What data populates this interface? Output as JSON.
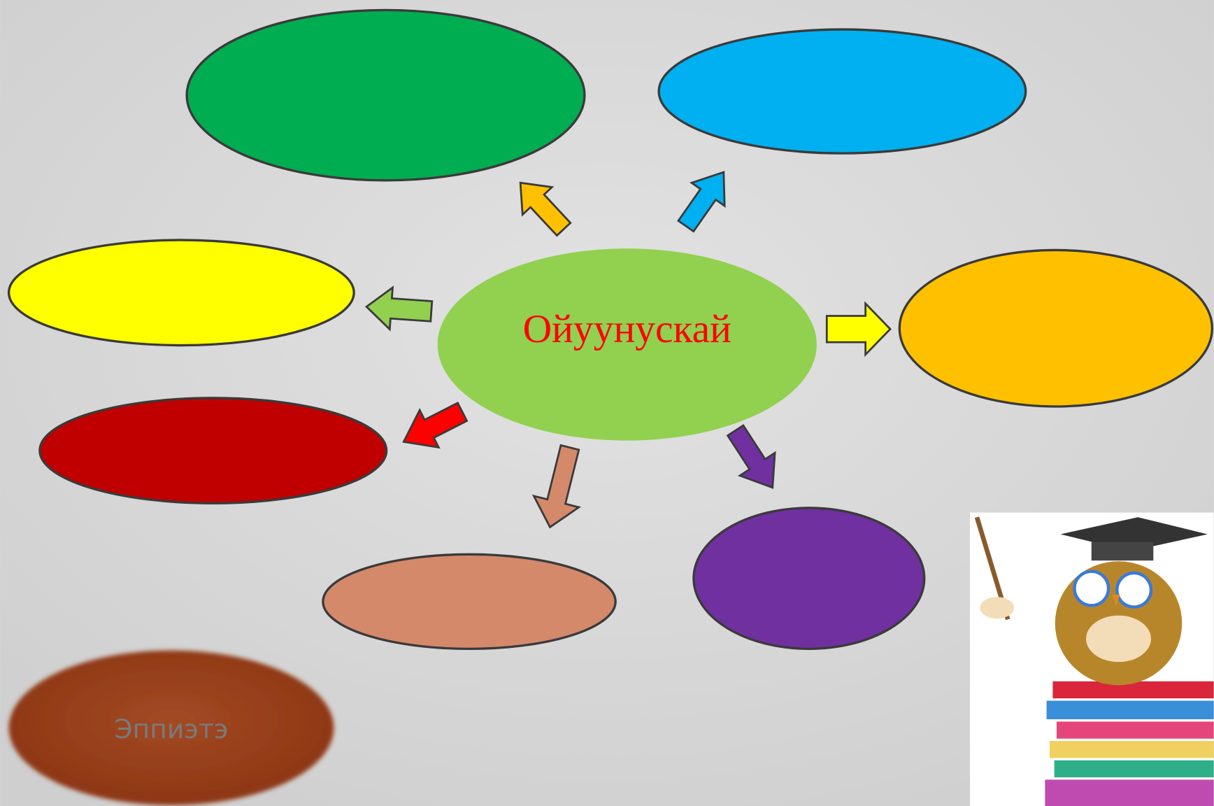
{
  "center": {
    "label": "Ойуунускай"
  },
  "answer_button": {
    "label": "Эппиэтэ"
  }
}
